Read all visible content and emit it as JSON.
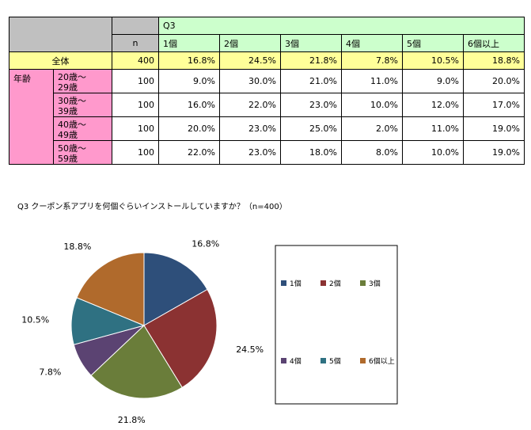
{
  "table": {
    "q_label": "Q3",
    "n_label": "n",
    "columns": [
      "1個",
      "2個",
      "3個",
      "4個",
      "5個",
      "6個以上"
    ],
    "total": {
      "label": "全体",
      "n": "400",
      "values": [
        "16.8%",
        "24.5%",
        "21.8%",
        "7.8%",
        "10.5%",
        "18.8%"
      ]
    },
    "group_label": "年齢",
    "rows": [
      {
        "line1": "20歳～",
        "line2": "29歳",
        "n": "100",
        "values": [
          "9.0%",
          "30.0%",
          "21.0%",
          "11.0%",
          "9.0%",
          "20.0%"
        ]
      },
      {
        "line1": "30歳～",
        "line2": "39歳",
        "n": "100",
        "values": [
          "16.0%",
          "22.0%",
          "23.0%",
          "10.0%",
          "12.0%",
          "17.0%"
        ]
      },
      {
        "line1": "40歳～",
        "line2": "49歳",
        "n": "100",
        "values": [
          "20.0%",
          "23.0%",
          "25.0%",
          "2.0%",
          "11.0%",
          "19.0%"
        ]
      },
      {
        "line1": "50歳～",
        "line2": "59歳",
        "n": "100",
        "values": [
          "22.0%",
          "23.0%",
          "18.0%",
          "8.0%",
          "10.0%",
          "19.0%"
        ]
      }
    ]
  },
  "caption": "Q3 クーポン系アプリを何個ぐらいインストールしていますか？（n=400）",
  "chart_data": {
    "type": "pie",
    "categories": [
      "1個",
      "2個",
      "3個",
      "4個",
      "5個",
      "6個以上"
    ],
    "values": [
      16.8,
      24.5,
      21.8,
      7.8,
      10.5,
      18.8
    ],
    "data_labels": [
      "16.8%",
      "24.5%",
      "21.8%",
      "7.8%",
      "10.5%",
      "18.8%"
    ],
    "colors": [
      "#2e4f7a",
      "#8b3232",
      "#6a7d3a",
      "#5b4372",
      "#2f7182",
      "#b06a2c"
    ],
    "start_angle": "12 o'clock",
    "direction": "clockwise",
    "legend": "right",
    "title": ""
  }
}
